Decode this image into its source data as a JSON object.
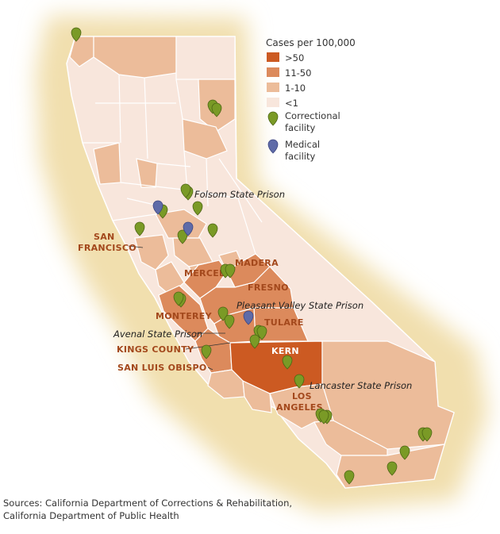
{
  "legend": {
    "title": "Cases per 100,000",
    "classes": [
      {
        "label": ">50",
        "color": "#cc5a22"
      },
      {
        "label": "11-50",
        "color": "#dc8a5c"
      },
      {
        "label": "1-10",
        "color": "#ecbc9a"
      },
      {
        "label": "<1",
        "color": "#f8e6dc"
      }
    ],
    "correctional_line1": "Correctional",
    "correctional_line2": "facility",
    "medical_line1": "Medical",
    "medical_line2": "facility",
    "correctional_color": "#7a9a26",
    "medical_color": "#5f6ba8"
  },
  "county_labels": {
    "sf1": "SAN",
    "sf2": "FRANCISCO",
    "madera": "MADERA",
    "merced": "MERCED",
    "fresno": "FRESNO",
    "monterey": "MONTEREY",
    "tulare": "TULARE",
    "kings": "KINGS COUNTY",
    "kern": "KERN",
    "slo": "SAN LUIS OBISPO",
    "la1": "LOS",
    "la2": "ANGELES"
  },
  "prison_labels": {
    "folsom": "Folsom State Prison",
    "pleasant_valley": "Pleasant Valley State Prison",
    "avenal": "Avenal State Prison",
    "lancaster": "Lancaster State Prison"
  },
  "sources": {
    "line1": "Sources: California Department of Corrections & Rehabilitation,",
    "line2": "California Department of Public Health"
  }
}
